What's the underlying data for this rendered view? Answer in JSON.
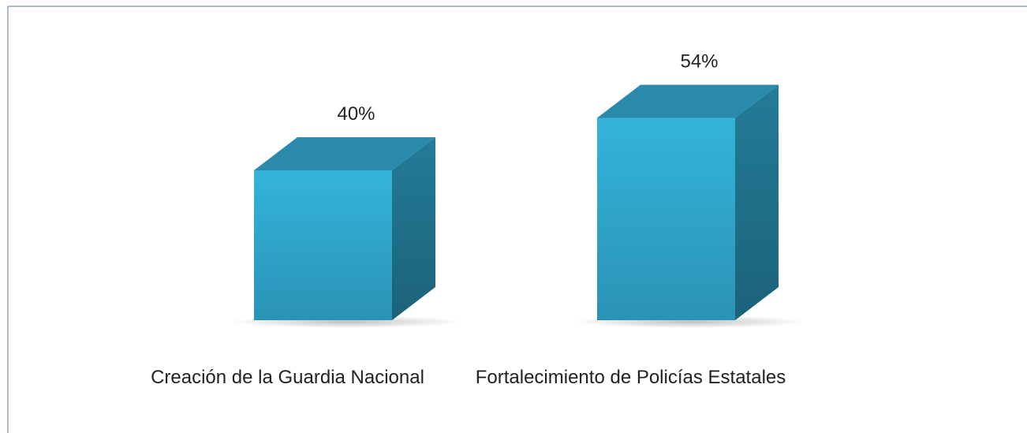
{
  "chart_data": {
    "type": "bar3d",
    "categories": [
      "Creación de la Guardia Nacional",
      "Fortalecimiento de Policías Estatales"
    ],
    "values": [
      40,
      54
    ],
    "value_labels": [
      "40%",
      "54%"
    ],
    "color": "#30b0d6"
  }
}
